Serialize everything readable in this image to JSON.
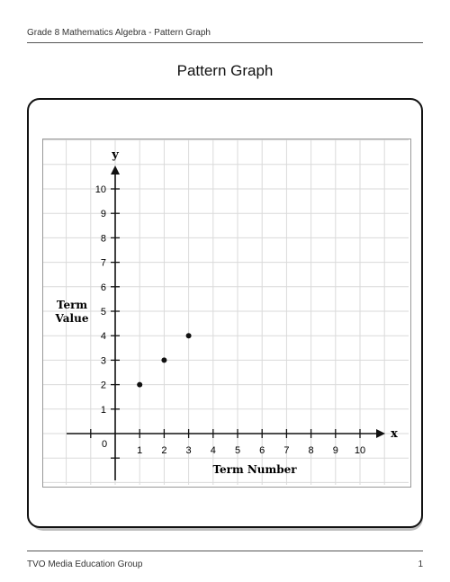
{
  "header": {
    "text": "Grade 8 Mathematics Algebra - Pattern Graph"
  },
  "title": "Pattern Graph",
  "footer": {
    "text": "TVO Media Education Group",
    "page": "1"
  },
  "chart_data": {
    "type": "scatter",
    "xlabel": "Term Number",
    "ylabel": "Term Value",
    "x_axis_letter": "x",
    "y_axis_letter": "y",
    "origin_label": "0",
    "x_ticks": [
      1,
      2,
      3,
      4,
      5,
      6,
      7,
      8,
      9,
      10
    ],
    "y_ticks": [
      1,
      2,
      3,
      4,
      5,
      6,
      7,
      8,
      9,
      10
    ],
    "xlim": [
      -1,
      11
    ],
    "ylim": [
      -2,
      11
    ],
    "grid": true,
    "points": [
      {
        "x": 1,
        "y": 2
      },
      {
        "x": 2,
        "y": 3
      },
      {
        "x": 3,
        "y": 4
      }
    ]
  }
}
